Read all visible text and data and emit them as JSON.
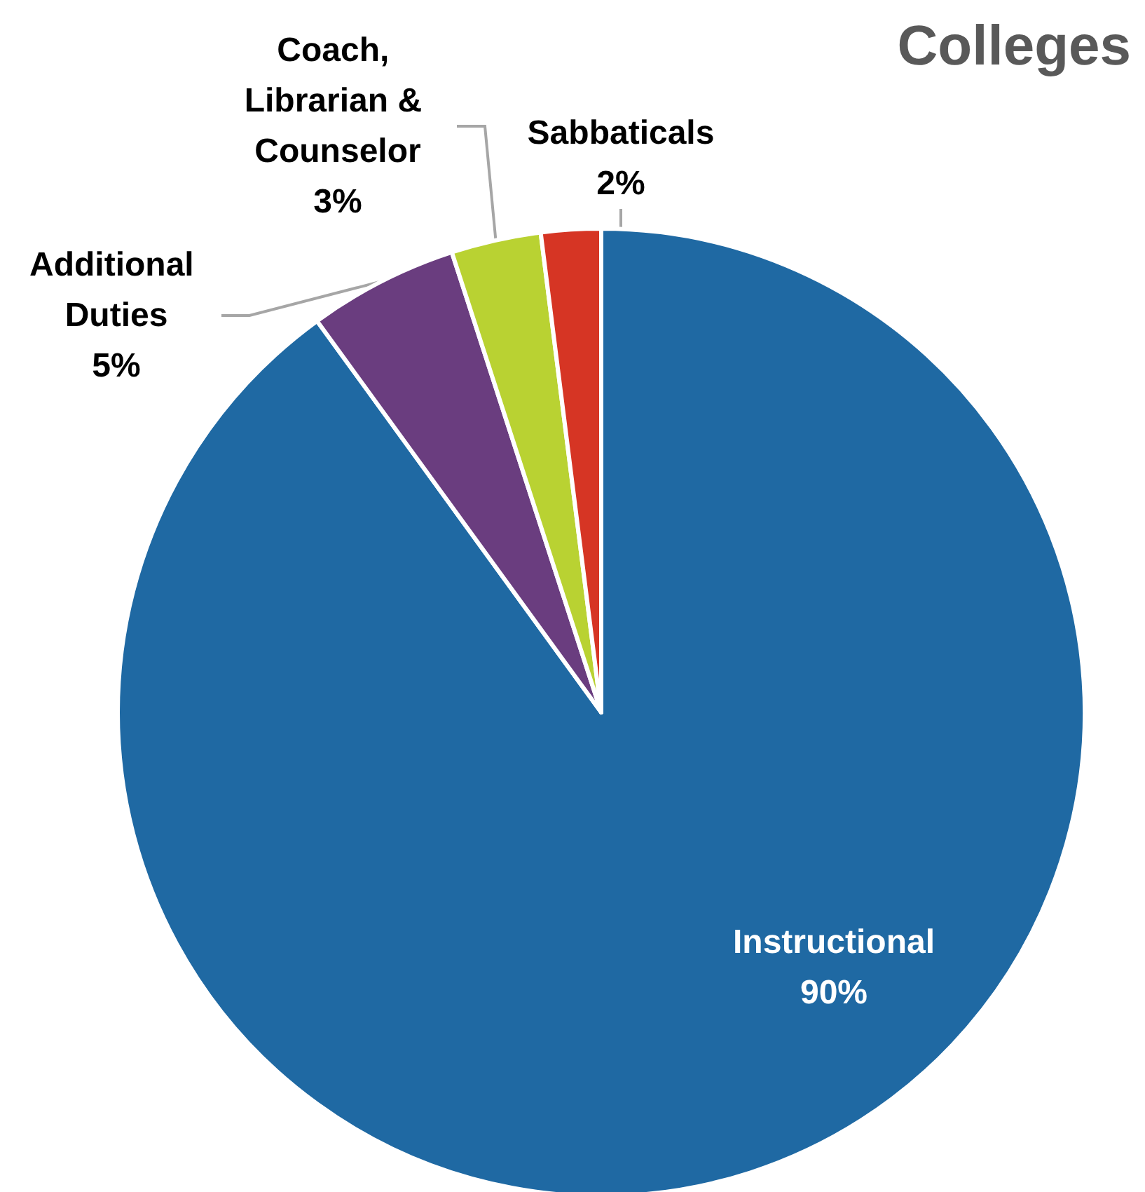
{
  "chart_data": {
    "type": "pie",
    "title": "Colleges",
    "categories": [
      "Instructional",
      "Additional Duties",
      "Coach, Librarian & Counselor",
      "Sabbaticals"
    ],
    "values": [
      90,
      5,
      3,
      2
    ],
    "value_labels": [
      "90%",
      "5%",
      "3%",
      "2%"
    ],
    "colors": [
      "#1f69a3",
      "#6a3d7f",
      "#b9d232",
      "#d63524"
    ],
    "legend": false
  }
}
